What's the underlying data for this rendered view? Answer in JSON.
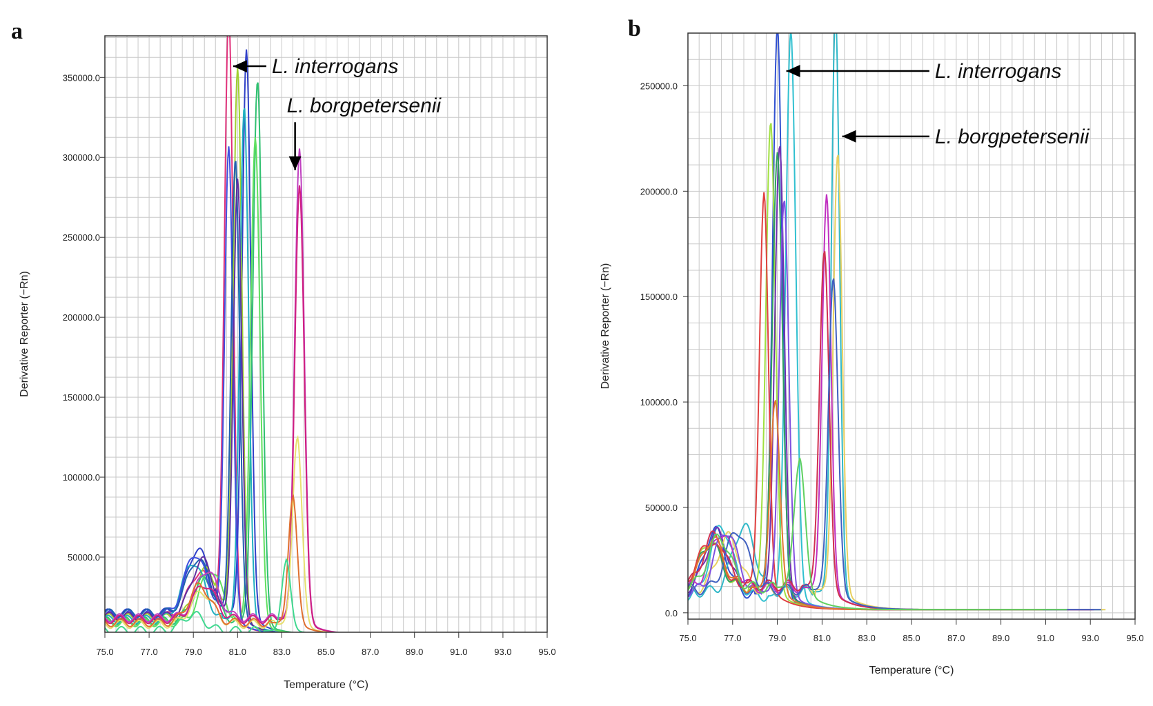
{
  "chart_data": [
    {
      "panel": "a",
      "type": "line",
      "xlabel": "Temperature (°C)",
      "ylabel": "Derivative Reporter (−Rn)",
      "xlim": [
        75.0,
        95.0
      ],
      "ylim": [
        3000,
        376000
      ],
      "x_ticks": [
        "75.0",
        "77.0",
        "79.0",
        "81.0",
        "83.0",
        "85.0",
        "87.0",
        "89.0",
        "91.0",
        "93.0",
        "95.0"
      ],
      "y_ticks": [
        {
          "value": 50000,
          "label": "50000.0"
        },
        {
          "value": 100000,
          "label": "100000.0"
        },
        {
          "value": 150000,
          "label": "150000.0"
        },
        {
          "value": 200000,
          "label": "200000.0"
        },
        {
          "value": 250000,
          "label": "250000.0"
        },
        {
          "value": 300000,
          "label": "300000.0"
        },
        {
          "value": 350000,
          "label": "350000.0"
        }
      ],
      "grid": true,
      "annotations": [
        {
          "text": "L. interrogans",
          "arrow_from": [
            82.3,
            357000
          ],
          "arrow_to": [
            80.8,
            357000
          ]
        },
        {
          "text": "L. borgpetersenii",
          "arrow_from": [
            83.6,
            322000
          ],
          "arrow_to": [
            83.6,
            292000
          ]
        }
      ],
      "series": [
        {
          "color": "#e0307a",
          "peak_x": 80.6,
          "peak_y": 376000,
          "shoulder_x": 79.3,
          "shoulder_y": 28000,
          "base": 13000,
          "width": 0.28
        },
        {
          "color": "#3040c8",
          "peak_x": 81.4,
          "peak_y": 351000,
          "shoulder_x": 79.2,
          "shoulder_y": 40000,
          "base": 15000,
          "width": 0.28
        },
        {
          "color": "#a0d030",
          "peak_x": 81.0,
          "peak_y": 342000,
          "shoulder_x": 79.6,
          "shoulder_y": 30000,
          "base": 12000,
          "width": 0.28
        },
        {
          "color": "#30c070",
          "peak_x": 81.9,
          "peak_y": 337000,
          "shoulder_x": 79.5,
          "shoulder_y": 26000,
          "base": 10000,
          "width": 0.3
        },
        {
          "color": "#20b0c0",
          "peak_x": 81.3,
          "peak_y": 320000,
          "shoulder_x": 79.0,
          "shoulder_y": 36000,
          "base": 11000,
          "width": 0.28
        },
        {
          "color": "#60e060",
          "peak_x": 81.8,
          "peak_y": 302000,
          "shoulder_x": 79.8,
          "shoulder_y": 33000,
          "base": 9000,
          "width": 0.3
        },
        {
          "color": "#4050e0",
          "peak_x": 80.6,
          "peak_y": 291000,
          "shoulder_x": 79.1,
          "shoulder_y": 38000,
          "base": 14000,
          "width": 0.27
        },
        {
          "color": "#2060b0",
          "peak_x": 80.9,
          "peak_y": 283000,
          "shoulder_x": 79.2,
          "shoulder_y": 34000,
          "base": 15000,
          "width": 0.27
        },
        {
          "color": "#6030a0",
          "peak_x": 81.0,
          "peak_y": 272000,
          "shoulder_x": 79.4,
          "shoulder_y": 35000,
          "base": 13000,
          "width": 0.27
        },
        {
          "color": "#c040c0",
          "peak_x": 83.8,
          "peak_y": 292000,
          "shoulder_x": 79.6,
          "shoulder_y": 30000,
          "base": 12000,
          "width": 0.3
        },
        {
          "color": "#d02080",
          "peak_x": 83.8,
          "peak_y": 270000,
          "shoulder_x": 79.5,
          "shoulder_y": 22000,
          "base": 11000,
          "width": 0.3
        },
        {
          "color": "#e8e070",
          "peak_x": 83.7,
          "peak_y": 116000,
          "shoulder_x": 79.4,
          "shoulder_y": 20000,
          "base": 8000,
          "width": 0.3
        },
        {
          "color": "#e07030",
          "peak_x": 83.5,
          "peak_y": 78000,
          "shoulder_x": 79.3,
          "shoulder_y": 23000,
          "base": 9000,
          "width": 0.28
        },
        {
          "color": "#40d890",
          "peak_x": 83.2,
          "peak_y": 43000,
          "shoulder_x": 79.0,
          "shoulder_y": 10000,
          "base": 4000,
          "width": 0.28
        }
      ]
    },
    {
      "panel": "b",
      "type": "line",
      "xlabel": "Temperature (°C)",
      "ylabel": "Derivative Reporter (−Rn)",
      "xlim": [
        75.0,
        95.0
      ],
      "ylim": [
        -3000,
        275000
      ],
      "x_ticks": [
        "75.0",
        "77.0",
        "79.0",
        "81.0",
        "83.0",
        "85.0",
        "87.0",
        "89.0",
        "91.0",
        "93.0",
        "95.0"
      ],
      "y_ticks": [
        {
          "value": 0,
          "label": "0.0"
        },
        {
          "value": 50000,
          "label": "50000.0"
        },
        {
          "value": 100000,
          "label": "100000.0"
        },
        {
          "value": 150000,
          "label": "150000.0"
        },
        {
          "value": 200000,
          "label": "200000.0"
        },
        {
          "value": 250000,
          "label": "250000.0"
        }
      ],
      "grid": true,
      "annotations": [
        {
          "text": "L. interrogans",
          "arrow_from": [
            85.8,
            257000
          ],
          "arrow_to": [
            79.4,
            257000
          ]
        },
        {
          "text": "L. borgpetersenii",
          "arrow_from": [
            85.8,
            226000
          ],
          "arrow_to": [
            81.9,
            226000
          ]
        }
      ],
      "series": [
        {
          "color": "#3050d0",
          "peak_x": 79.0,
          "peak_y": 268000,
          "shoulder_x": 76.2,
          "shoulder_y": 30000,
          "base": 9000,
          "width": 0.3
        },
        {
          "color": "#30c0d0",
          "peak_x": 79.6,
          "peak_y": 267000,
          "shoulder_x": 76.5,
          "shoulder_y": 33000,
          "base": 8000,
          "width": 0.32
        },
        {
          "color": "#30b8c8",
          "peak_x": 81.6,
          "peak_y": 275000,
          "shoulder_x": 77.5,
          "shoulder_y": 31000,
          "base": 10000,
          "width": 0.26
        },
        {
          "color": "#a0e040",
          "peak_x": 78.7,
          "peak_y": 220000,
          "shoulder_x": 76.0,
          "shoulder_y": 22000,
          "base": 12000,
          "width": 0.3
        },
        {
          "color": "#7030b0",
          "peak_x": 79.1,
          "peak_y": 210000,
          "shoulder_x": 76.3,
          "shoulder_y": 27000,
          "base": 11000,
          "width": 0.3
        },
        {
          "color": "#e8d060",
          "peak_x": 81.7,
          "peak_y": 206000,
          "shoulder_x": 76.8,
          "shoulder_y": 25000,
          "base": 11000,
          "width": 0.28
        },
        {
          "color": "#30a060",
          "peak_x": 79.0,
          "peak_y": 205000,
          "shoulder_x": 76.0,
          "shoulder_y": 21000,
          "base": 12000,
          "width": 0.32
        },
        {
          "color": "#e04040",
          "peak_x": 78.4,
          "peak_y": 184000,
          "shoulder_x": 76.0,
          "shoulder_y": 20000,
          "base": 14000,
          "width": 0.28
        },
        {
          "color": "#c030c0",
          "peak_x": 81.2,
          "peak_y": 185000,
          "shoulder_x": 76.5,
          "shoulder_y": 26000,
          "base": 12000,
          "width": 0.28
        },
        {
          "color": "#8050e0",
          "peak_x": 79.3,
          "peak_y": 185000,
          "shoulder_x": 76.7,
          "shoulder_y": 29000,
          "base": 10000,
          "width": 0.3
        },
        {
          "color": "#d03050",
          "peak_x": 81.1,
          "peak_y": 158000,
          "shoulder_x": 76.2,
          "shoulder_y": 24000,
          "base": 13000,
          "width": 0.3
        },
        {
          "color": "#4060c0",
          "peak_x": 81.5,
          "peak_y": 147000,
          "shoulder_x": 77.2,
          "shoulder_y": 28000,
          "base": 11000,
          "width": 0.3
        },
        {
          "color": "#e07830",
          "peak_x": 78.9,
          "peak_y": 88000,
          "shoulder_x": 76.1,
          "shoulder_y": 23000,
          "base": 12000,
          "width": 0.3
        },
        {
          "color": "#60d060",
          "peak_x": 80.0,
          "peak_y": 60000,
          "shoulder_x": 76.4,
          "shoulder_y": 24000,
          "base": 12000,
          "width": 0.35
        }
      ]
    }
  ]
}
